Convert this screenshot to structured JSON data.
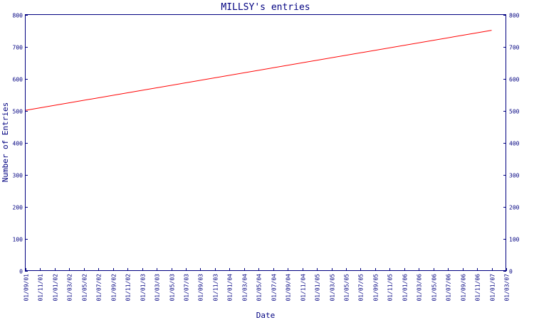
{
  "chart_data": {
    "type": "line",
    "title": "MILLSY's entries",
    "xlabel": "Date",
    "ylabel": "Number of Entries",
    "ylim": [
      0,
      800
    ],
    "yticks": [
      "0",
      "100",
      "200",
      "300",
      "400",
      "500",
      "600",
      "700",
      "800"
    ],
    "right_axis_ticks": true,
    "grid": false,
    "categories": [
      "01/09/01",
      "01/11/01",
      "01/01/02",
      "01/03/02",
      "01/05/02",
      "01/07/02",
      "01/09/02",
      "01/11/02",
      "01/01/03",
      "01/03/03",
      "01/05/03",
      "01/07/03",
      "01/09/03",
      "01/11/03",
      "01/01/04",
      "01/03/04",
      "01/05/04",
      "01/07/04",
      "01/09/04",
      "01/11/04",
      "01/01/05",
      "01/03/05",
      "01/05/05",
      "01/07/05",
      "01/09/05",
      "01/11/05",
      "01/01/06",
      "01/03/06",
      "01/05/06",
      "01/07/06",
      "01/09/06",
      "01/11/06",
      "01/01/07",
      "01/03/07"
    ],
    "series": [
      {
        "color": "#ff0000",
        "x": [
          "01/09/01",
          "01/01/07"
        ],
        "values": [
          502,
          752
        ]
      }
    ]
  },
  "colors": {
    "axis": "#000080",
    "line": "#ff0000",
    "background": "#ffffff"
  }
}
